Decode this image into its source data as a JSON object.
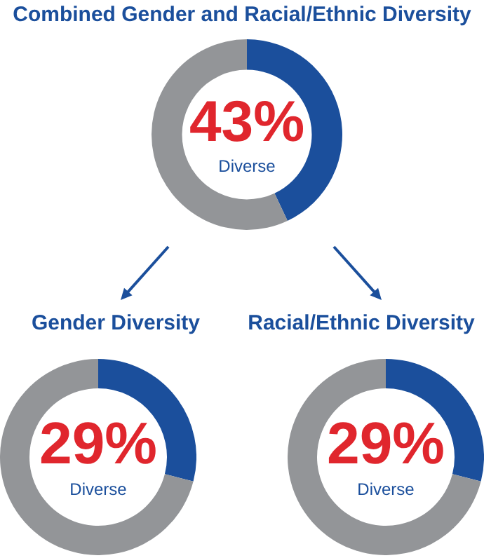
{
  "chart_data": [
    {
      "type": "donut",
      "title": "Combined Gender and Racial/Ethnic Diversity",
      "categories": [
        "Diverse",
        null
      ],
      "values": [
        43,
        57
      ],
      "colors": [
        "#1b4f9c",
        "#939598"
      ],
      "value_labels": [
        "43%",
        null
      ]
    },
    {
      "type": "donut",
      "title": "Gender Diversity",
      "categories": [
        "Diverse",
        null
      ],
      "values": [
        29,
        71
      ],
      "colors": [
        "#1b4f9c",
        "#939598"
      ],
      "value_labels": [
        "29%",
        null
      ]
    },
    {
      "type": "donut",
      "title": "Racial/Ethnic Diversity",
      "categories": [
        "Diverse",
        null
      ],
      "values": [
        29,
        71
      ],
      "colors": [
        "#1b4f9c",
        "#939598"
      ],
      "value_labels": [
        "29%",
        null
      ]
    }
  ]
}
